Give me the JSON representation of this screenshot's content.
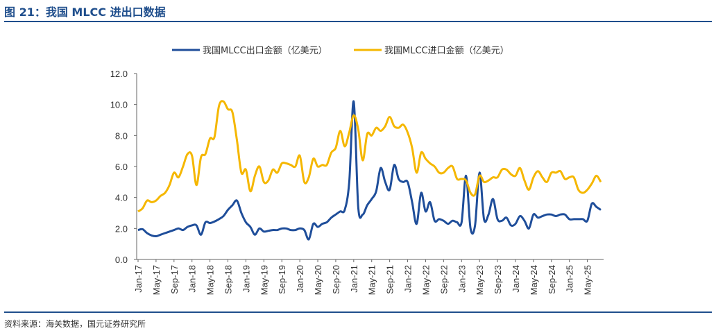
{
  "header": {
    "title": "图 21：我国 MLCC 进出口数据"
  },
  "footer": {
    "source": "资料来源：海关数据，国元证券研究所"
  },
  "colors": {
    "export": "#1f4e9a",
    "import": "#f5b700",
    "rule": "#1f4e8c"
  },
  "chart_data": {
    "type": "line",
    "title": "",
    "xlabel": "",
    "ylabel": "",
    "ylim": [
      0,
      12
    ],
    "yticks": [
      "0.0",
      "2.0",
      "4.0",
      "6.0",
      "8.0",
      "10.0",
      "12.0"
    ],
    "grid": false,
    "legend_position": "top-center",
    "x_tick_labels": [
      "Jan-17",
      "May-17",
      "Sep-17",
      "Jan-18",
      "May-18",
      "Sep-18",
      "Jan-19",
      "May-19",
      "Sep-19",
      "Jan-20",
      "May-20",
      "Sep-20",
      "Jan-21",
      "May-21",
      "Sep-21",
      "Jan-22",
      "May-22",
      "Sep-22",
      "Jan-23",
      "May-23",
      "Sep-23",
      "Jan-24",
      "May-24",
      "Sep-24",
      "Jan-25",
      "May-25"
    ],
    "series": [
      {
        "name": "我国MLCC出口金额（亿美元）",
        "color": "#1f4e9a",
        "values": [
          1.9,
          1.95,
          1.7,
          1.55,
          1.5,
          1.6,
          1.7,
          1.8,
          1.9,
          2.0,
          1.9,
          2.1,
          2.2,
          2.2,
          1.6,
          2.4,
          2.35,
          2.45,
          2.6,
          2.8,
          3.2,
          3.5,
          3.8,
          3.0,
          2.4,
          2.1,
          1.6,
          2.0,
          1.8,
          1.85,
          1.9,
          1.9,
          2.0,
          2.0,
          1.9,
          1.9,
          2.0,
          1.9,
          1.3,
          2.3,
          2.1,
          2.3,
          2.4,
          2.7,
          2.9,
          3.1,
          3.2,
          5.0,
          10.2,
          3.4,
          2.9,
          3.5,
          3.9,
          4.4,
          5.9,
          5.0,
          4.5,
          6.1,
          5.2,
          5.0,
          5.0,
          3.7,
          2.3,
          4.3,
          3.1,
          3.7,
          2.5,
          2.6,
          2.5,
          2.3,
          2.5,
          2.4,
          2.4,
          5.4,
          2.0,
          2.2,
          5.6,
          2.6,
          2.9,
          3.9,
          2.6,
          2.5,
          2.7,
          2.2,
          2.3,
          2.8,
          2.5,
          2.0,
          2.9,
          2.7,
          2.8,
          2.9,
          2.9,
          2.8,
          2.9,
          2.9,
          2.6,
          2.6,
          2.6,
          2.6,
          2.5,
          3.6,
          3.4,
          3.2
        ]
      },
      {
        "name": "我国MLCC进口金额（亿美元）",
        "color": "#f5b700",
        "values": [
          3.1,
          3.3,
          3.8,
          3.7,
          3.8,
          4.1,
          4.3,
          4.8,
          5.6,
          5.3,
          6.0,
          6.8,
          6.7,
          4.8,
          6.6,
          6.8,
          7.8,
          7.9,
          9.9,
          10.2,
          9.7,
          9.5,
          7.7,
          5.6,
          5.8,
          4.4,
          5.4,
          6.0,
          5.0,
          5.1,
          5.8,
          5.6,
          6.2,
          6.2,
          6.1,
          6.0,
          6.7,
          5.0,
          5.3,
          6.5,
          6.0,
          6.1,
          6.1,
          6.9,
          7.2,
          8.3,
          7.3,
          8.2,
          9.3,
          8.4,
          6.4,
          8.1,
          8.0,
          8.5,
          8.3,
          8.6,
          9.2,
          8.6,
          8.5,
          8.7,
          8.2,
          7.2,
          5.6,
          6.9,
          6.5,
          6.2,
          6.0,
          5.6,
          5.6,
          5.9,
          6.0,
          5.2,
          5.2,
          5.1,
          4.3,
          4.2,
          5.4,
          5.0,
          5.1,
          5.3,
          5.3,
          5.8,
          5.8,
          5.5,
          5.4,
          5.9,
          5.1,
          4.5,
          5.3,
          5.7,
          5.3,
          5.0,
          5.6,
          5.6,
          5.7,
          5.2,
          5.3,
          5.3,
          4.5,
          4.3,
          4.5,
          4.9,
          5.4,
          5.0
        ]
      }
    ]
  }
}
